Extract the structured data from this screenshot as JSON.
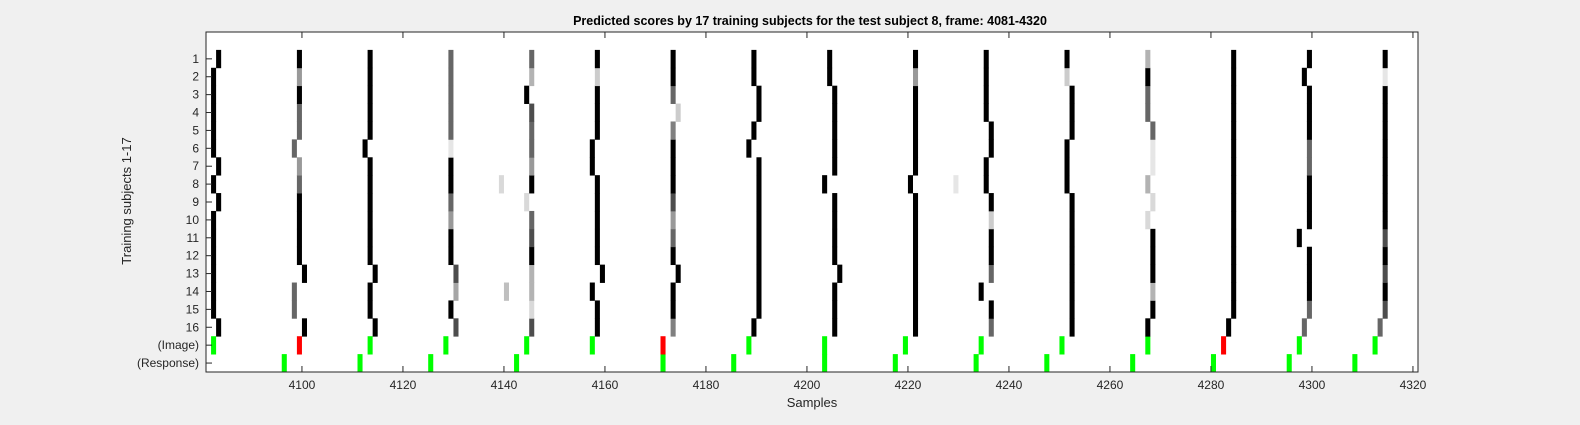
{
  "chart_data": {
    "type": "heatmap",
    "title": "Predicted scores by 17 training subjects for the test subject 8, frame: 4081-4320",
    "xlabel": "Samples",
    "ylabel": "Training subjects 1-17",
    "xlim": [
      4081,
      4320
    ],
    "xticks": [
      4100,
      4120,
      4140,
      4160,
      4180,
      4200,
      4220,
      4240,
      4260,
      4280,
      4300,
      4320
    ],
    "row_labels": [
      "1",
      "2",
      "3",
      "4",
      "5",
      "6",
      "7",
      "8",
      "9",
      "10",
      "11",
      "12",
      "13",
      "14",
      "15",
      "16",
      "(Image)",
      "(Response)"
    ],
    "grid": false,
    "colors": {
      "event": "#00ff00",
      "mismatch": "#ff0000",
      "score": "#000000",
      "background": "#ffffff"
    },
    "score_color_scale": "grayscale: value 1 = black, 0 = white",
    "cluster_centers": [
      4082,
      4099,
      4113,
      4129,
      4145,
      4158,
      4173,
      4189,
      4204,
      4220,
      4235,
      4251,
      4267,
      4283,
      4298,
      4313
    ],
    "cluster_shift": [
      [
        1,
        1,
        1,
        1,
        0,
        0,
        0,
        0,
        1,
        1,
        1,
        1,
        0,
        0,
        0,
        0
      ],
      [
        0,
        -1,
        0,
        0,
        0,
        0,
        0,
        1,
        1,
        1,
        1,
        1,
        1,
        1,
        1,
        1
      ],
      [
        0,
        -1,
        0,
        1,
        0,
        -1,
        0,
        1,
        1,
        1,
        -1,
        1,
        1,
        1,
        1,
        1
      ],
      [
        0,
        1,
        1,
        1,
        0,
        1,
        1,
        1,
        2,
        1,
        1,
        1,
        1,
        1,
        1,
        1
      ],
      [
        0,
        0,
        0,
        0,
        0,
        0,
        0,
        1,
        1,
        1,
        1,
        1,
        1,
        1,
        1,
        1
      ],
      [
        0,
        0,
        0,
        0,
        0,
        0,
        0,
        1,
        1,
        1,
        1,
        1,
        1,
        1,
        -1,
        1
      ],
      [
        0,
        0,
        0,
        0,
        0,
        0,
        0,
        1,
        1,
        1,
        1,
        1,
        0,
        1,
        1,
        1
      ],
      [
        1,
        0,
        0,
        0,
        -1,
        0,
        0,
        1,
        1,
        1,
        1,
        1,
        1,
        1,
        1,
        1
      ],
      [
        0,
        0,
        0,
        0,
        0,
        0,
        0,
        1,
        -1,
        0,
        0,
        0,
        0,
        1,
        1,
        1
      ],
      [
        1,
        0,
        0,
        0,
        0,
        -1,
        0,
        1,
        1,
        1,
        0,
        0,
        1,
        1,
        1,
        1
      ],
      [
        0,
        -1,
        -1,
        0,
        0,
        -1,
        0,
        -1,
        1,
        1,
        1,
        0,
        1,
        1,
        1,
        1
      ],
      [
        0,
        0,
        0,
        0,
        0,
        0,
        0,
        0,
        1,
        1,
        1,
        1,
        1,
        1,
        1,
        1
      ],
      [
        0,
        0,
        0,
        0,
        0,
        0,
        1,
        1,
        1,
        1,
        0,
        1,
        0,
        1,
        1,
        1
      ],
      [
        0,
        0,
        0,
        0,
        -1,
        0,
        0,
        1,
        1,
        1,
        0,
        1,
        0,
        1,
        1,
        1
      ],
      [
        0,
        0,
        0,
        0,
        0,
        0,
        0,
        0,
        0,
        1,
        0,
        0,
        0,
        1,
        0,
        1
      ],
      [
        1,
        0,
        0,
        0,
        0,
        0,
        0,
        0,
        0,
        1,
        0,
        0,
        0,
        1,
        1,
        1
      ]
    ],
    "cluster_shade": [
      [
        1,
        1,
        1,
        0.7,
        0.7,
        1,
        0.5,
        1,
        1,
        1,
        0.6,
        1,
        1,
        1,
        0.6,
        0.6
      ],
      [
        1,
        0.6,
        1,
        1,
        0.15,
        1,
        1,
        1,
        1,
        1,
        1,
        1,
        1,
        1,
        0.6,
        0.7
      ],
      [
        1,
        0.6,
        1,
        0.35,
        0.3,
        1,
        1,
        1,
        1,
        1,
        1,
        1,
        0.3,
        1,
        1,
        1
      ],
      [
        1,
        1,
        1,
        0.7,
        0.3,
        1,
        1,
        1,
        1,
        1,
        0.6,
        1,
        1,
        1,
        1,
        0.7
      ],
      [
        1,
        1,
        1,
        1,
        1,
        1,
        1,
        1,
        1,
        1,
        1,
        1,
        1,
        1,
        1,
        1
      ],
      [
        1,
        1,
        1,
        1,
        0.7,
        1,
        0.6,
        1,
        1,
        1,
        1,
        1,
        1,
        1,
        1,
        0.7
      ],
      [
        1,
        1,
        1,
        0.4,
        0.6,
        1,
        0.4,
        1,
        1,
        1,
        0.2,
        1,
        0.15,
        1,
        1,
        1
      ],
      [
        1,
        1,
        1,
        0.6,
        0.15,
        1,
        0.7,
        1,
        1,
        1,
        1,
        1,
        0.15,
        1,
        1,
        1
      ],
      [
        1,
        0.6,
        1,
        1,
        1,
        1,
        1,
        1,
        1,
        1,
        1,
        1,
        0.3,
        1,
        1,
        1
      ],
      [
        1,
        0.4,
        1,
        1,
        0.4,
        1,
        1,
        1,
        1,
        1,
        1,
        1,
        0.1,
        1,
        0.6,
        1
      ],
      [
        1,
        0.6,
        1,
        0.1,
        0.6,
        1,
        1,
        1,
        1,
        1,
        1,
        1,
        0.1,
        1,
        0.6,
        1
      ],
      [
        1,
        0.6,
        1,
        0.6,
        0.6,
        1,
        0.5,
        1,
        1,
        1,
        1,
        1,
        0.6,
        1,
        1,
        1
      ],
      [
        1,
        0.6,
        1,
        0.6,
        0.7,
        1,
        0.2,
        1,
        1,
        1,
        1,
        1,
        0.6,
        1,
        1,
        1
      ],
      [
        1,
        1,
        1,
        0.6,
        1,
        1,
        0.6,
        1,
        1,
        1,
        1,
        1,
        0.6,
        1,
        1,
        1
      ],
      [
        1,
        0.4,
        1,
        0.6,
        0.3,
        0.2,
        1,
        1,
        1,
        0.4,
        1,
        0.2,
        1,
        1,
        1,
        0.1
      ],
      [
        1,
        1,
        1,
        0.6,
        0.6,
        1,
        1,
        1,
        1,
        1,
        1,
        1,
        0.3,
        1,
        1,
        1
      ]
    ],
    "extra_marks": [
      {
        "x": 4139,
        "row": 9,
        "shade": 0.15
      },
      {
        "x": 4140,
        "row": 3,
        "shade": 0.25
      },
      {
        "x": 4229,
        "row": 9,
        "shade": 0.1
      }
    ],
    "image_events": [
      {
        "x": 4082,
        "match": true
      },
      {
        "x": 4099,
        "match": false
      },
      {
        "x": 4113,
        "match": true
      },
      {
        "x": 4128,
        "match": true
      },
      {
        "x": 4144,
        "match": true
      },
      {
        "x": 4157,
        "match": true
      },
      {
        "x": 4171,
        "match": false
      },
      {
        "x": 4188,
        "match": true
      },
      {
        "x": 4203,
        "match": true
      },
      {
        "x": 4219,
        "match": true
      },
      {
        "x": 4234,
        "match": true
      },
      {
        "x": 4250,
        "match": true
      },
      {
        "x": 4267,
        "match": true
      },
      {
        "x": 4282,
        "match": false
      },
      {
        "x": 4297,
        "match": true
      },
      {
        "x": 4312,
        "match": true
      }
    ],
    "response_events": [
      4096,
      4111,
      4125,
      4142,
      4171,
      4185,
      4203,
      4217,
      4233,
      4247,
      4264,
      4280,
      4295,
      4308
    ]
  }
}
